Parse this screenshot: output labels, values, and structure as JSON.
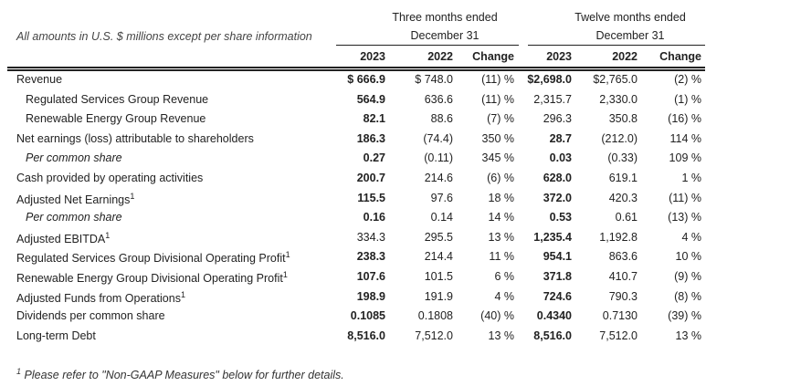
{
  "header": {
    "note": "All amounts in U.S. $ millions except per share information",
    "three_months": {
      "line1": "Three months ended",
      "line2": "December 31"
    },
    "twelve_months": {
      "line1": "Twelve months ended",
      "line2": "December 31"
    },
    "columns": [
      "2023",
      "2022",
      "Change",
      "2023",
      "2022",
      "Change"
    ]
  },
  "rows": [
    {
      "label": "Revenue",
      "sup": "",
      "indent": false,
      "italic": false,
      "values": [
        "$ 666.9",
        "$ 748.0",
        "(11) %",
        "$2,698.0",
        "$2,765.0",
        "(2) %"
      ],
      "bold": [
        true,
        false,
        false,
        true,
        false,
        false
      ]
    },
    {
      "label": "Regulated Services Group Revenue",
      "sup": "",
      "indent": true,
      "italic": false,
      "values": [
        "564.9",
        "636.6",
        "(11) %",
        "2,315.7",
        "2,330.0",
        "(1) %"
      ],
      "bold": [
        true,
        false,
        false,
        false,
        false,
        false
      ]
    },
    {
      "label": "Renewable Energy Group Revenue",
      "sup": "",
      "indent": true,
      "italic": false,
      "values": [
        "82.1",
        "88.6",
        "(7) %",
        "296.3",
        "350.8",
        "(16) %"
      ],
      "bold": [
        true,
        false,
        false,
        false,
        false,
        false
      ]
    },
    {
      "label": "Net earnings (loss) attributable to shareholders",
      "sup": "",
      "indent": false,
      "italic": false,
      "values": [
        "186.3",
        "(74.4)",
        "350 %",
        "28.7",
        "(212.0)",
        "114 %"
      ],
      "bold": [
        true,
        false,
        false,
        true,
        false,
        false
      ]
    },
    {
      "label": "Per common share",
      "sup": "",
      "indent": true,
      "italic": true,
      "values": [
        "0.27",
        "(0.11)",
        "345 %",
        "0.03",
        "(0.33)",
        "109 %"
      ],
      "bold": [
        true,
        false,
        false,
        true,
        false,
        false
      ]
    },
    {
      "label": "Cash provided by operating activities",
      "sup": "",
      "indent": false,
      "italic": false,
      "values": [
        "200.7",
        "214.6",
        "(6) %",
        "628.0",
        "619.1",
        "1 %"
      ],
      "bold": [
        true,
        false,
        false,
        true,
        false,
        false
      ]
    },
    {
      "label": "Adjusted Net Earnings",
      "sup": "1",
      "indent": false,
      "italic": false,
      "values": [
        "115.5",
        "97.6",
        "18 %",
        "372.0",
        "420.3",
        "(11) %"
      ],
      "bold": [
        true,
        false,
        false,
        true,
        false,
        false
      ]
    },
    {
      "label": "Per common share",
      "sup": "",
      "indent": true,
      "italic": true,
      "values": [
        "0.16",
        "0.14",
        "14 %",
        "0.53",
        "0.61",
        "(13) %"
      ],
      "bold": [
        true,
        false,
        false,
        true,
        false,
        false
      ]
    },
    {
      "label": "Adjusted EBITDA",
      "sup": "1",
      "indent": false,
      "italic": false,
      "values": [
        "334.3",
        "295.5",
        "13 %",
        "1,235.4",
        "1,192.8",
        "4 %"
      ],
      "bold": [
        false,
        false,
        false,
        true,
        false,
        false
      ]
    },
    {
      "label": "Regulated Services Group Divisional Operating Profit",
      "sup": "1",
      "indent": false,
      "italic": false,
      "values": [
        "238.3",
        "214.4",
        "11 %",
        "954.1",
        "863.6",
        "10 %"
      ],
      "bold": [
        true,
        false,
        false,
        true,
        false,
        false
      ]
    },
    {
      "label": "Renewable Energy Group Divisional Operating Profit",
      "sup": "1",
      "indent": false,
      "italic": false,
      "values": [
        "107.6",
        "101.5",
        "6 %",
        "371.8",
        "410.7",
        "(9) %"
      ],
      "bold": [
        true,
        false,
        false,
        true,
        false,
        false
      ]
    },
    {
      "label": "Adjusted Funds from Operations",
      "sup": "1",
      "indent": false,
      "italic": false,
      "values": [
        "198.9",
        "191.9",
        "4 %",
        "724.6",
        "790.3",
        "(8) %"
      ],
      "bold": [
        true,
        false,
        false,
        true,
        false,
        false
      ]
    },
    {
      "label": "Dividends per common share",
      "sup": "",
      "indent": false,
      "italic": false,
      "values": [
        "0.1085",
        "0.1808",
        "(40) %",
        "0.4340",
        "0.7130",
        "(39) %"
      ],
      "bold": [
        true,
        false,
        false,
        true,
        false,
        false
      ]
    },
    {
      "label": "Long-term Debt",
      "sup": "",
      "indent": false,
      "italic": false,
      "values": [
        "8,516.0",
        "7,512.0",
        "13 %",
        "8,516.0",
        "7,512.0",
        "13 %"
      ],
      "bold": [
        true,
        false,
        false,
        true,
        false,
        false
      ]
    }
  ],
  "footnote": {
    "sup": "1",
    "text": "Please refer to \"Non-GAAP Measures\" below for further details."
  }
}
